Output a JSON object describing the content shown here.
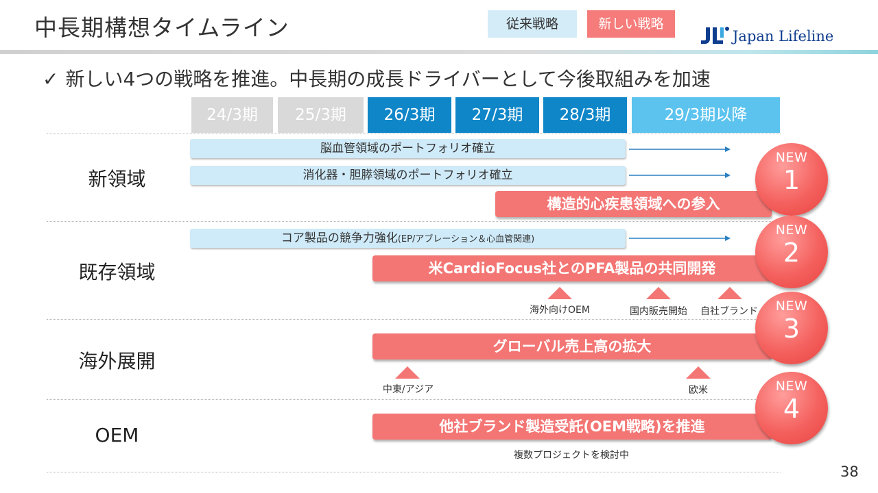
{
  "header": {
    "title": "中長期構想タイムライン",
    "legend_existing": "従来戦略",
    "legend_new": "新しい戦略",
    "logo_mark": "JL",
    "logo_text": "Japan Lifeline"
  },
  "lead": {
    "check": "✓",
    "text": "新しい4つの戦略を推進。中長期の成長ドライバーとして今後取組みを加速"
  },
  "periods": [
    "24/3期",
    "25/3期",
    "26/3期",
    "27/3期",
    "28/3期",
    "29/3期以降"
  ],
  "rows": {
    "new_domain": {
      "label": "新領域",
      "bar1": "脳血管領域のポートフォリオ確立",
      "bar2": "消化器・胆膵領域のポートフォリオ確立",
      "red_bar": "構造的心疾患領域への参入",
      "badge_new": "NEW",
      "badge_num": "1"
    },
    "existing_domain": {
      "label": "既存領域",
      "bar1_main": "コア製品の競争力強化",
      "bar1_sub": "(EP/アブレーション＆心血管関連)",
      "red_bar": "米CardioFocus社とのPFA製品の共同開発",
      "badge_new": "NEW",
      "badge_num": "2",
      "milestones": [
        "海外向けOEM",
        "国内販売開始",
        "自社ブランド"
      ]
    },
    "overseas": {
      "label": "海外展開",
      "red_bar": "グローバル売上高の拡大",
      "badge_new": "NEW",
      "badge_num": "3",
      "milestones": [
        "中東/アジア",
        "欧米"
      ]
    },
    "oem": {
      "label": "OEM",
      "red_bar": "他社ブランド製造受託(OEM戦略)を推進",
      "badge_new": "NEW",
      "badge_num": "4",
      "note": "複数プロジェクトを検討中"
    }
  },
  "page_number": "38",
  "colors": {
    "past": "#d9d9d9",
    "mid": "#0f86c8",
    "future": "#5cc3ef",
    "new_strategy": "#f37674",
    "existing_strategy": "#cfeaf8",
    "logo_blue": "#0e3d8e"
  }
}
